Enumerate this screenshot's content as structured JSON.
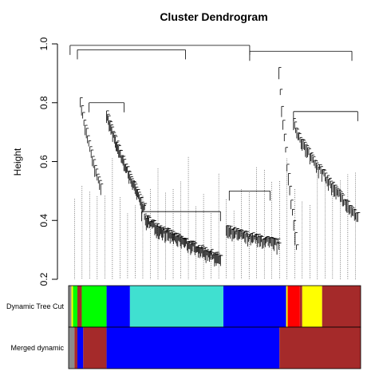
{
  "chart_data": {
    "type": "dendrogram",
    "title": "Cluster Dendrogram",
    "ylabel": "Height",
    "xlabel": "",
    "ylim": [
      0.2,
      1.0
    ],
    "yticks": [
      0.2,
      0.4,
      0.6,
      0.8,
      1.0
    ],
    "ytick_labels": [
      "0.2",
      "0.4",
      "0.6",
      "0.8",
      "1.0"
    ],
    "grid": false,
    "leaf_count": 450,
    "merges": [
      {
        "name": "root",
        "height": 0.995,
        "x0": 0.005,
        "x1": 0.62
      },
      {
        "name": "right-root",
        "height": 0.975,
        "x0": 0.62,
        "x1": 0.97
      },
      {
        "name": "left-main",
        "height": 0.98,
        "x0": 0.03,
        "x1": 0.4
      },
      {
        "name": "left-big",
        "height": 0.8,
        "x0": 0.07,
        "x1": 0.19
      },
      {
        "name": "turquoise-branch",
        "height": 0.43,
        "x0": 0.25,
        "x1": 0.52
      },
      {
        "name": "blue-branch",
        "height": 0.5,
        "x0": 0.55,
        "x1": 0.69
      },
      {
        "name": "right-sub",
        "height": 0.77,
        "x0": 0.77,
        "x1": 0.99
      }
    ],
    "color_rows": [
      {
        "label": "Dynamic Tree Cut",
        "segments": [
          {
            "color": "#8b8b8b",
            "from": 0.0,
            "to": 0.01
          },
          {
            "color": "#ffff00",
            "from": 0.01,
            "to": 0.015
          },
          {
            "color": "#00ff00",
            "from": 0.015,
            "to": 0.03
          },
          {
            "color": "#a52a2a",
            "from": 0.03,
            "to": 0.045
          },
          {
            "color": "#00ff00",
            "from": 0.045,
            "to": 0.13
          },
          {
            "color": "#0000ff",
            "from": 0.13,
            "to": 0.21
          },
          {
            "color": "#40e0d0",
            "from": 0.21,
            "to": 0.53
          },
          {
            "color": "#0000ff",
            "from": 0.53,
            "to": 0.745
          },
          {
            "color": "#ffff00",
            "from": 0.745,
            "to": 0.75
          },
          {
            "color": "#ff0000",
            "from": 0.75,
            "to": 0.792
          },
          {
            "color": "#a52a2a",
            "from": 0.792,
            "to": 0.8
          },
          {
            "color": "#ffff00",
            "from": 0.8,
            "to": 0.868
          },
          {
            "color": "#a52a2a",
            "from": 0.868,
            "to": 1.0
          }
        ]
      },
      {
        "label": "Merged dynamic",
        "segments": [
          {
            "color": "#8b8b8b",
            "from": 0.0,
            "to": 0.02
          },
          {
            "color": "#a52a2a",
            "from": 0.02,
            "to": 0.03
          },
          {
            "color": "#0000ff",
            "from": 0.03,
            "to": 0.05
          },
          {
            "color": "#a52a2a",
            "from": 0.05,
            "to": 0.13
          },
          {
            "color": "#0000ff",
            "from": 0.13,
            "to": 0.722
          },
          {
            "color": "#a52a2a",
            "from": 0.722,
            "to": 1.0
          }
        ]
      }
    ]
  }
}
